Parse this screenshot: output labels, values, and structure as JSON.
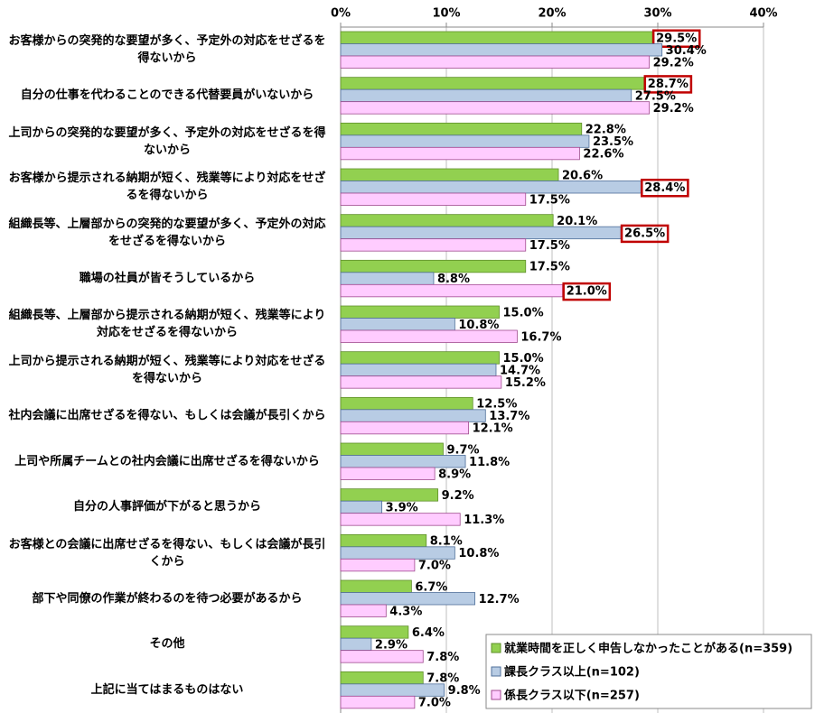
{
  "chart_data": {
    "type": "bar",
    "orientation": "horizontal",
    "categories": [
      "お客様からの突発的な要望が多く、予定外の対応をせざるを得ないから",
      "自分の仕事を代わることのできる代替要員がいないから",
      "上司からの突発的な要望が多く、予定外の対応をせざるを得ないから",
      "お客様から提示される納期が短く、残業等により対応をせざるを得ないから",
      "組織長等、上層部からの突発的な要望が多く、予定外の対応をせざるを得ないから",
      "職場の社員が皆そうしているから",
      "組織長等、上層部から提示される納期が短く、残業等により対応をせざるを得ないから",
      "上司から提示される納期が短く、残業等により対応をせざるを得ないから",
      "社内会議に出席せざるを得ない、もしくは会議が長引くから",
      "上司や所属チームとの社内会議に出席せざるを得ないから",
      "自分の人事評価が下がると思うから",
      "お客様との会議に出席せざるを得ない、もしくは会議が長引くから",
      "部下や同僚の作業が終わるのを待つ必要があるから",
      "その他",
      "上記に当てはまるものはない"
    ],
    "series": [
      {
        "name": "就業時間を正しく申告しなかったことがある(n=359)",
        "color": "#92d050",
        "border": "#5f8f2a",
        "values": [
          29.5,
          28.7,
          22.8,
          20.6,
          20.1,
          17.5,
          15.0,
          15.0,
          12.5,
          9.7,
          9.2,
          8.1,
          6.7,
          6.4,
          7.8
        ],
        "value_labels": [
          "29.5%",
          "28.7%",
          "22.8%",
          "20.6%",
          "20.1%",
          "17.5%",
          "15.0%",
          "15.0%",
          "12.5%",
          "9.7%",
          "9.2%",
          "8.1%",
          "6.7%",
          "6.4%",
          "7.8%"
        ]
      },
      {
        "name": "課長クラス以上(n=102)",
        "color": "#b8cce4",
        "border": "#4f6f9a",
        "values": [
          30.4,
          27.5,
          23.5,
          28.4,
          26.5,
          8.8,
          10.8,
          14.7,
          13.7,
          11.8,
          3.9,
          10.8,
          12.7,
          2.9,
          9.8
        ],
        "value_labels": [
          "30.4%",
          "27.5%",
          "23.5%",
          "28.4%",
          "26.5%",
          "8.8%",
          "10.8%",
          "14.7%",
          "13.7%",
          "11.8%",
          "3.9%",
          "10.8%",
          "12.7%",
          "2.9%",
          "9.8%"
        ]
      },
      {
        "name": "係長クラス以下(n=257)",
        "color": "#ffccff",
        "border": "#a04a8f",
        "values": [
          29.2,
          29.2,
          22.6,
          17.5,
          17.5,
          21.0,
          16.7,
          15.2,
          12.1,
          8.9,
          11.3,
          7.0,
          4.3,
          7.8,
          7.0
        ],
        "value_labels": [
          "29.2%",
          "29.2%",
          "22.6%",
          "17.5%",
          "17.5%",
          "21.0%",
          "16.7%",
          "15.2%",
          "12.1%",
          "8.9%",
          "11.3%",
          "7.0%",
          "4.3%",
          "7.8%",
          "7.0%"
        ]
      }
    ],
    "highlighted": [
      [
        0,
        0
      ],
      [
        0,
        1
      ],
      [
        1,
        3
      ],
      [
        1,
        4
      ],
      [
        2,
        5
      ]
    ],
    "highlight_color": "#c00000",
    "xlim": [
      0,
      40
    ],
    "xticks": [
      {
        "value": 0,
        "label": "0%"
      },
      {
        "value": 10,
        "label": "10%"
      },
      {
        "value": 20,
        "label": "20%"
      },
      {
        "value": 30,
        "label": "30%"
      },
      {
        "value": 40,
        "label": "40%"
      }
    ],
    "grid": true,
    "legend": "bottom-right"
  }
}
